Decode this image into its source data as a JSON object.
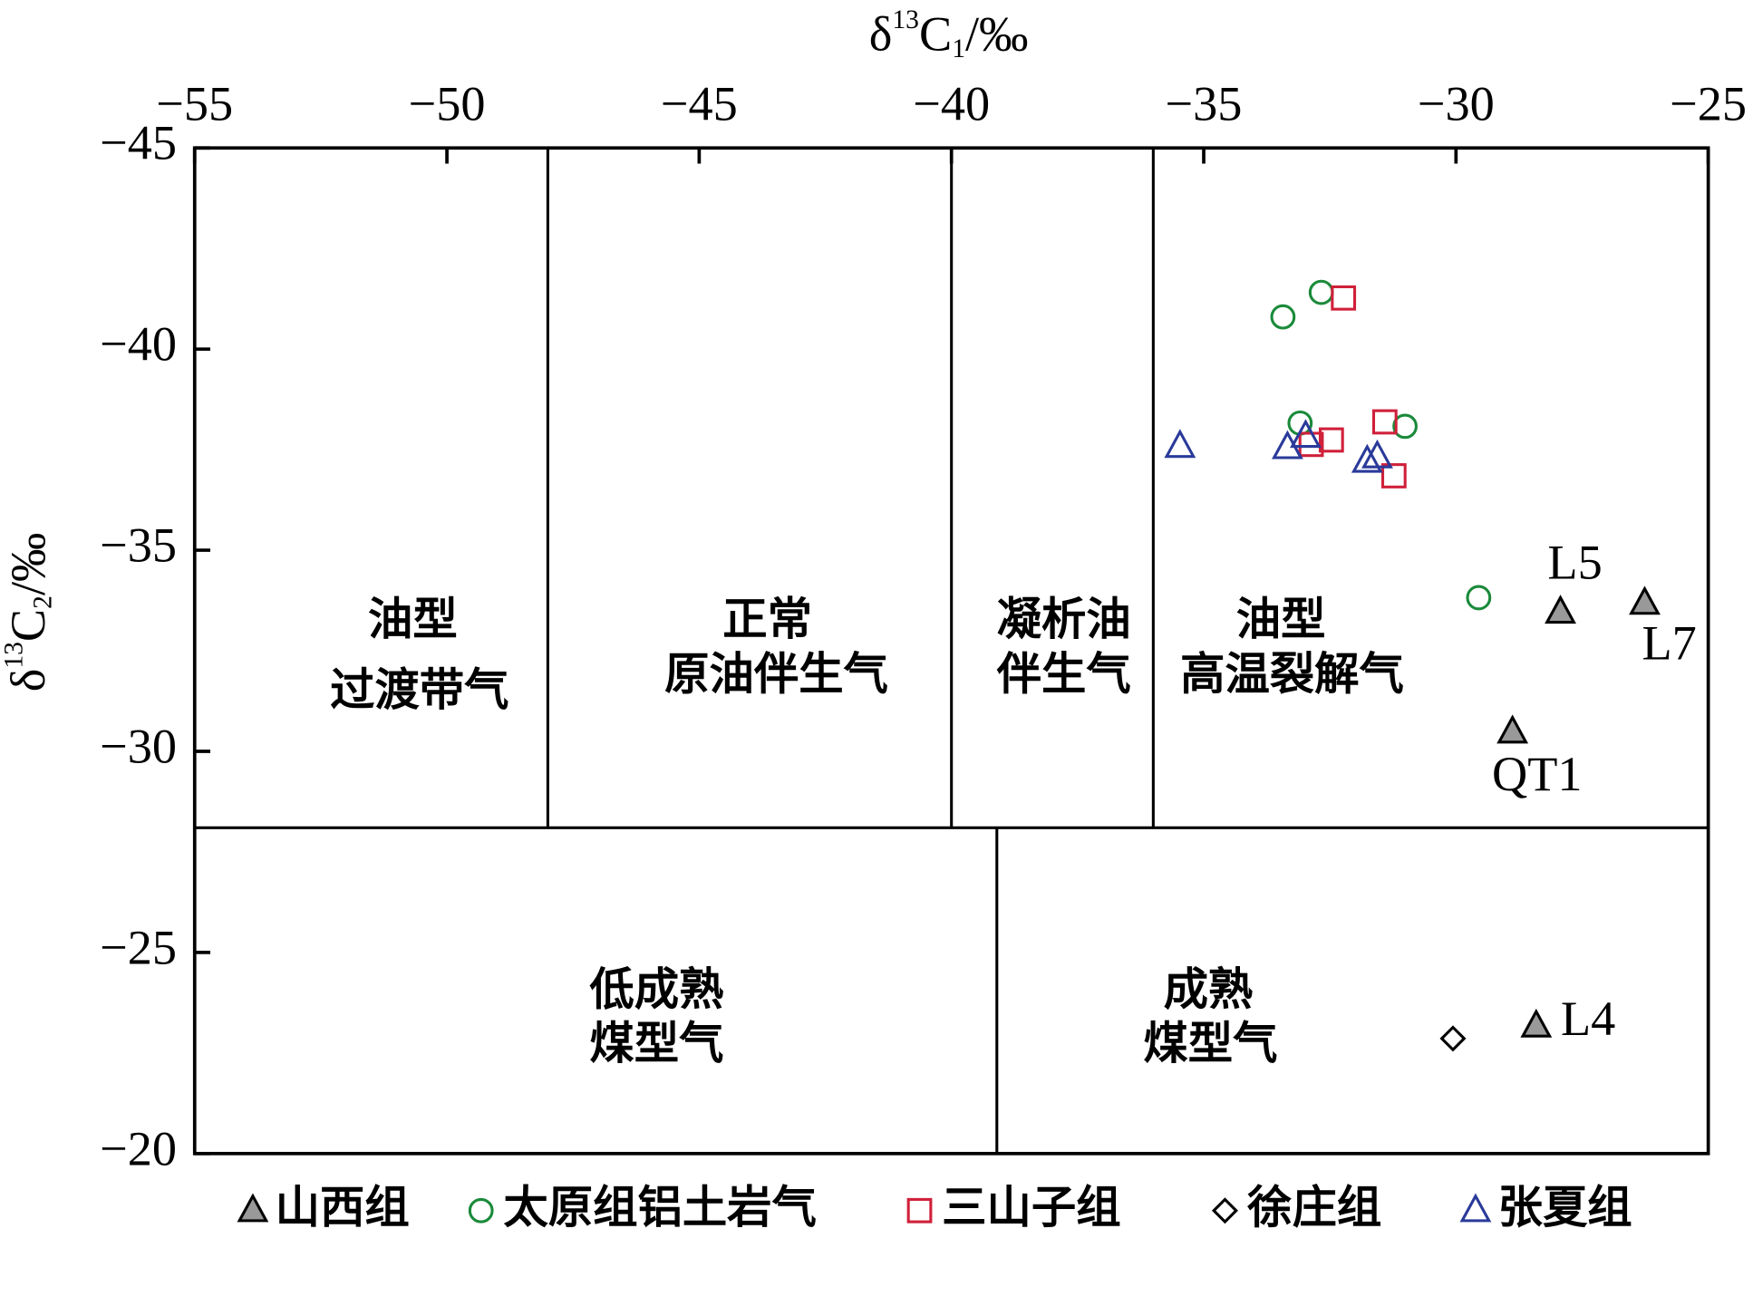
{
  "chart_data": {
    "type": "scatter",
    "xlabel_parts": [
      "δ",
      "13",
      "C",
      "1",
      "/‰"
    ],
    "ylabel_parts": [
      "δ",
      "13",
      "C",
      "2",
      "/‰"
    ],
    "xlim": [
      -55,
      -25
    ],
    "xticks": [
      {
        "value": -55,
        "label": "−55"
      },
      {
        "value": -50,
        "label": "−50"
      },
      {
        "value": -45,
        "label": "−45"
      },
      {
        "value": -40,
        "label": "−40"
      },
      {
        "value": -35,
        "label": "−35"
      },
      {
        "value": -30,
        "label": "−30"
      },
      {
        "value": -25,
        "label": "−25"
      }
    ],
    "ylim": [
      -20,
      -45
    ],
    "yticks": [
      {
        "value": -45,
        "label": "−45"
      },
      {
        "value": -40,
        "label": "−40"
      },
      {
        "value": -35,
        "label": "−35"
      },
      {
        "value": -30,
        "label": "−30"
      },
      {
        "value": -25,
        "label": "−25"
      },
      {
        "value": -20,
        "label": "−20"
      }
    ],
    "region_lines": [
      {
        "x": [
          -55,
          -25
        ],
        "y": [
          -28.1,
          -28.1
        ]
      },
      {
        "x": [
          -48,
          -48
        ],
        "y": [
          -45,
          -28.1
        ]
      },
      {
        "x": [
          -40,
          -40
        ],
        "y": [
          -45,
          -28.1
        ]
      },
      {
        "x": [
          -36,
          -36
        ],
        "y": [
          -45,
          -28.1
        ]
      },
      {
        "x": [
          -39.1,
          -39.1
        ],
        "y": [
          -28.1,
          -20
        ]
      }
    ],
    "regions": [
      [
        "油型",
        "过渡带气"
      ],
      [
        "正常",
        "原油伴生气"
      ],
      [
        "凝析油",
        "伴生气"
      ],
      [
        "油型",
        "高温裂解气"
      ],
      [
        "低成熟",
        "煤型气"
      ],
      [
        "成熟",
        "煤型气"
      ]
    ],
    "legend": "bottom",
    "series": [
      {
        "name": "山西组",
        "marker": "triangle",
        "color": "#000000",
        "fill": "#999999",
        "x": [
          -27.93,
          -26.26,
          -28.88,
          -28.41
        ],
        "values": [
          -33.46,
          -33.68,
          -30.48,
          -23.17
        ],
        "point_labels": [
          "L5",
          "L7",
          "QT1",
          "L4"
        ]
      },
      {
        "name": "太原组铝土岩气",
        "marker": "circle",
        "color": "#1a8a3a",
        "x": [
          -33.43,
          -32.67,
          -33.09,
          -31.01,
          -29.55
        ],
        "values": [
          -40.8,
          -41.41,
          -38.16,
          -38.08,
          -33.82
        ]
      },
      {
        "name": "三山子组",
        "marker": "square",
        "color": "#d0203a",
        "x": [
          -32.23,
          -31.41,
          -32.47,
          -32.87,
          -31.23
        ],
        "values": [
          -41.27,
          -38.19,
          -37.74,
          -37.63,
          -36.85
        ]
      },
      {
        "name": "徐庄组",
        "marker": "diamond",
        "color": "#000000",
        "x": [
          -30.06
        ],
        "values": [
          -22.86
        ]
      },
      {
        "name": "张夏组",
        "marker": "triangle",
        "color": "#2a3a9a",
        "x": [
          -35.47,
          -33.34,
          -32.98,
          -31.76,
          -31.56
        ],
        "values": [
          -37.58,
          -37.55,
          -37.83,
          -37.21,
          -37.32
        ]
      }
    ]
  }
}
